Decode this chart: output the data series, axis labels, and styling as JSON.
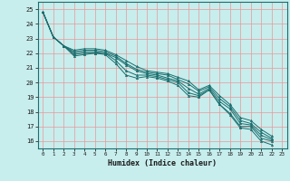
{
  "xlabel": "Humidex (Indice chaleur)",
  "xlim": [
    -0.5,
    23.5
  ],
  "ylim": [
    15.5,
    25.5
  ],
  "yticks": [
    16,
    17,
    18,
    19,
    20,
    21,
    22,
    23,
    24,
    25
  ],
  "xticks": [
    0,
    1,
    2,
    3,
    4,
    5,
    6,
    7,
    8,
    9,
    10,
    11,
    12,
    13,
    14,
    15,
    16,
    17,
    18,
    19,
    20,
    21,
    22,
    23
  ],
  "background_color": "#c8eded",
  "grid_color": "#e89898",
  "line_color": "#1a6e6e",
  "xlabel_bg": "#2a8a8a",
  "lines": [
    [
      24.8,
      23.1,
      22.5,
      21.8,
      21.9,
      22.0,
      21.9,
      21.3,
      20.5,
      20.3,
      20.4,
      20.3,
      20.1,
      19.8,
      19.1,
      19.0,
      19.5,
      18.5,
      17.8,
      16.9,
      16.8,
      16.0,
      15.75
    ],
    [
      24.8,
      23.1,
      22.5,
      21.9,
      22.0,
      22.0,
      22.0,
      21.5,
      20.8,
      20.5,
      20.5,
      20.4,
      20.2,
      20.0,
      19.3,
      19.1,
      19.5,
      18.5,
      17.9,
      17.0,
      17.0,
      16.2,
      16.0
    ],
    [
      24.8,
      23.1,
      22.5,
      22.0,
      22.1,
      22.1,
      22.0,
      21.7,
      21.2,
      20.8,
      20.6,
      20.5,
      20.3,
      20.1,
      19.6,
      19.2,
      19.6,
      18.7,
      18.2,
      17.2,
      17.1,
      16.4,
      16.1
    ],
    [
      24.8,
      23.1,
      22.5,
      22.1,
      22.2,
      22.2,
      22.1,
      21.8,
      21.3,
      20.9,
      20.7,
      20.6,
      20.5,
      20.2,
      19.9,
      19.4,
      19.7,
      18.9,
      18.35,
      17.4,
      17.2,
      16.6,
      16.2
    ],
    [
      24.8,
      23.1,
      22.5,
      22.2,
      22.3,
      22.3,
      22.2,
      21.9,
      21.5,
      21.1,
      20.8,
      20.7,
      20.6,
      20.35,
      20.1,
      19.5,
      19.8,
      19.1,
      18.5,
      17.6,
      17.4,
      16.8,
      16.35
    ]
  ]
}
